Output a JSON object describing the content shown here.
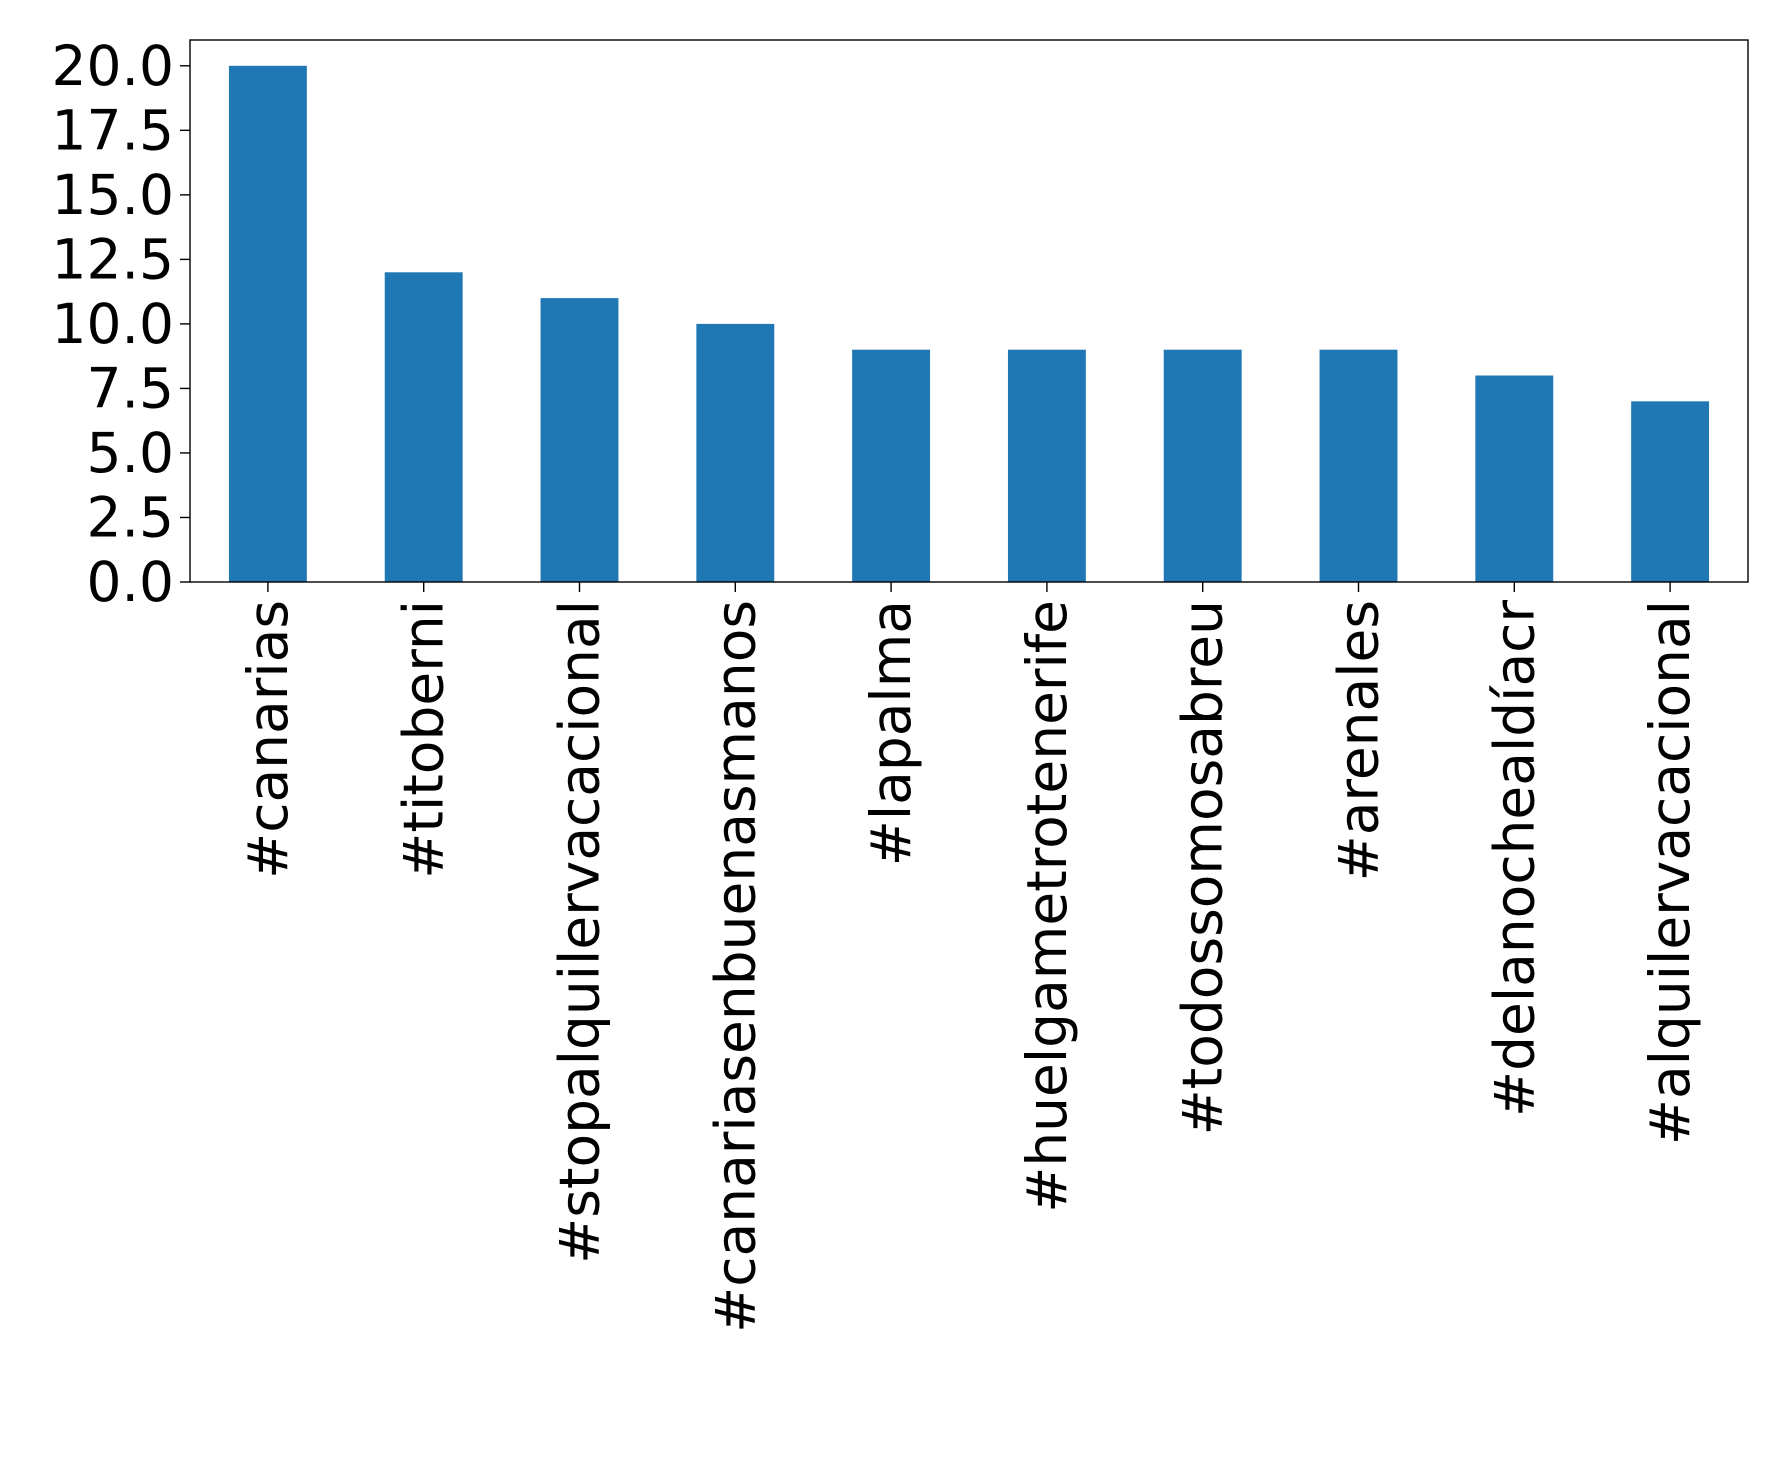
{
  "chart_data": {
    "type": "bar",
    "title": "",
    "xlabel": "",
    "ylabel": "",
    "categories": [
      "#canarias",
      "#titoberni",
      "#stopalquilervacacional",
      "#canariasenbuenasmanos",
      "#lapalma",
      "#huelgametrotenerife",
      "#todossomosabreu",
      "#arenales",
      "#delanochealdíacr",
      "#alquilervacacional"
    ],
    "values": [
      20,
      12,
      11,
      10,
      9,
      9,
      9,
      9,
      8,
      7
    ],
    "ylim": [
      0,
      21
    ],
    "yticks": [
      0.0,
      2.5,
      5.0,
      7.5,
      10.0,
      12.5,
      15.0,
      17.5,
      20.0
    ],
    "ytick_labels": [
      "0.0",
      "2.5",
      "5.0",
      "7.5",
      "10.0",
      "12.5",
      "15.0",
      "17.5",
      "20.0"
    ],
    "bar_color": "#1f77b4",
    "grid": false,
    "legend": "none"
  }
}
